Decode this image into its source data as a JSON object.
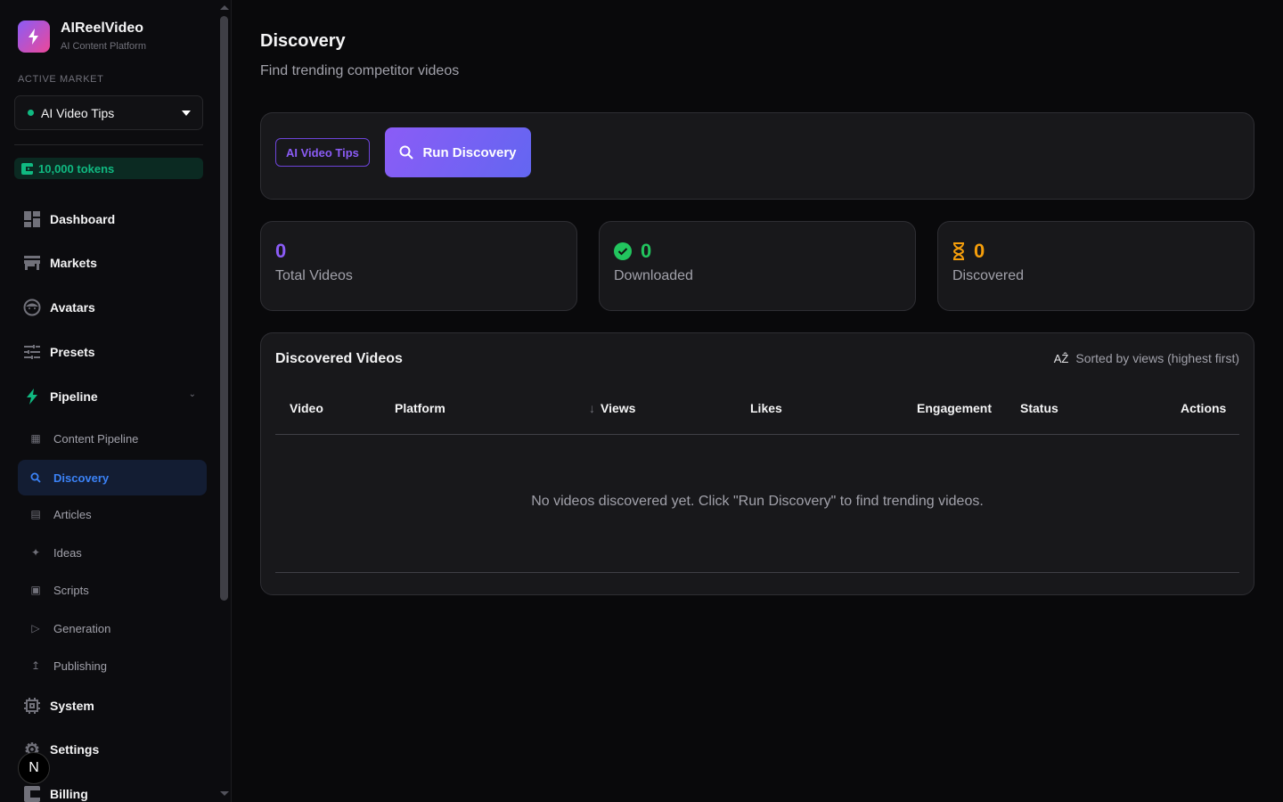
{
  "brand": {
    "name": "AIReelVideo",
    "subtitle": "AI Content Platform"
  },
  "market": {
    "label": "ACTIVE MARKET",
    "selected": "AI Video Tips",
    "status_color": "#10b981"
  },
  "tokens": "10,000 tokens",
  "nav": [
    {
      "label": "Dashboard",
      "icon": "dashboard-icon"
    },
    {
      "label": "Markets",
      "icon": "store-icon"
    },
    {
      "label": "Avatars",
      "icon": "face-icon"
    },
    {
      "label": "Presets",
      "icon": "sliders-icon"
    },
    {
      "label": "Pipeline",
      "icon": "bolt-icon"
    },
    {
      "label": "System",
      "icon": "chip-icon"
    },
    {
      "label": "Settings",
      "icon": "gear-icon"
    },
    {
      "label": "Billing",
      "icon": "wallet-icon"
    }
  ],
  "pipeline_items": [
    {
      "label": "Content Pipeline",
      "icon": "flow-icon"
    },
    {
      "label": "Discovery",
      "icon": "search-icon",
      "active": true
    },
    {
      "label": "Articles",
      "icon": "article-icon"
    },
    {
      "label": "Ideas",
      "icon": "sparkle-icon"
    },
    {
      "label": "Scripts",
      "icon": "document-icon"
    },
    {
      "label": "Generation",
      "icon": "play-circle-icon"
    },
    {
      "label": "Publishing",
      "icon": "upload-icon"
    }
  ],
  "badge": "N",
  "page": {
    "title": "Discovery",
    "subtitle": "Find trending competitor videos"
  },
  "toolbar": {
    "chip": "AI Video Tips",
    "run": "Run Discovery"
  },
  "stats": [
    {
      "value": "0",
      "label": "Total Videos",
      "color": "#8b5cf6"
    },
    {
      "value": "0",
      "label": "Downloaded",
      "color": "#22c55e"
    },
    {
      "value": "0",
      "label": "Discovered",
      "color": "#f59e0b"
    }
  ],
  "table": {
    "title": "Discovered Videos",
    "sort_note": "Sorted by views (highest first)",
    "columns": [
      "Video",
      "Platform",
      "Views",
      "Likes",
      "Engagement",
      "Status",
      "Actions"
    ],
    "empty": "No videos discovered yet. Click \"Run Discovery\" to find trending videos."
  }
}
